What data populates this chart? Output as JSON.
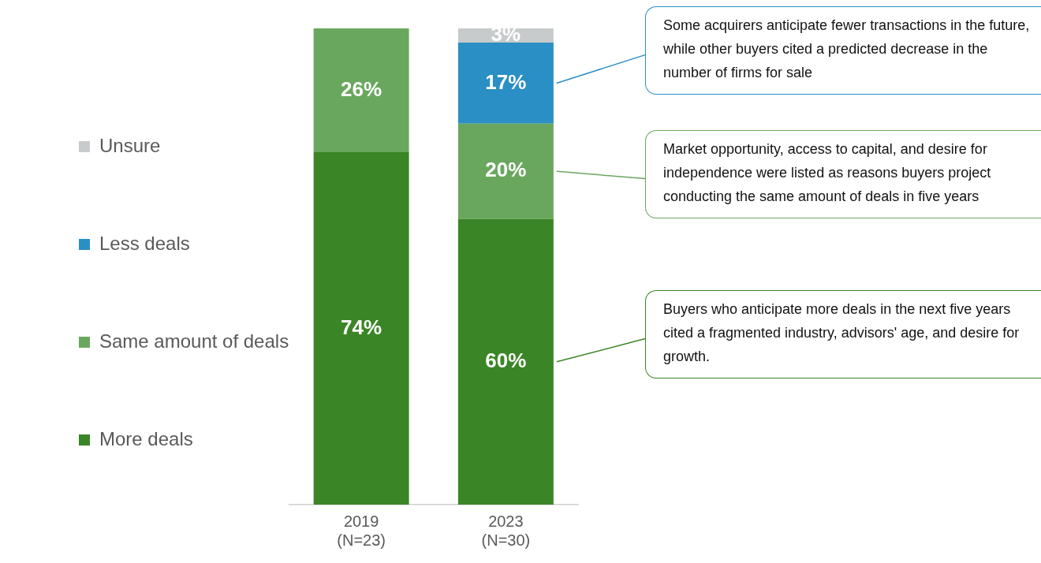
{
  "chart_data": {
    "type": "bar",
    "stacked": true,
    "categories": [
      "2019\n(N=23)",
      "2023\n(N=30)"
    ],
    "series": [
      {
        "name": "More deals",
        "color": "#3a8526",
        "values": [
          74,
          60
        ],
        "value_labels": [
          "74%",
          "60%"
        ]
      },
      {
        "name": "Same amount of deals",
        "color": "#6aa75e",
        "values": [
          26,
          20
        ],
        "value_labels": [
          "26%",
          "20%"
        ]
      },
      {
        "name": "Less deals",
        "color": "#2a8fc4",
        "values": [
          null,
          17
        ],
        "value_labels": [
          null,
          "17%"
        ]
      },
      {
        "name": "Unsure",
        "color": "#c8cbcc",
        "values": [
          null,
          3
        ],
        "value_labels": [
          null,
          "3%"
        ]
      }
    ],
    "legend": "left",
    "annotations": [
      "Some acquirers anticipate fewer transactions in the future, while other buyers cited a predicted decrease in the number of firms for sale",
      "Market opportunity, access to capital, and desire for independence were listed as reasons buyers project conducting the same amount of deals in five years",
      "Buyers who anticipate more deals in the next five years cited a fragmented industry, advisors' age, and desire for growth."
    ]
  }
}
